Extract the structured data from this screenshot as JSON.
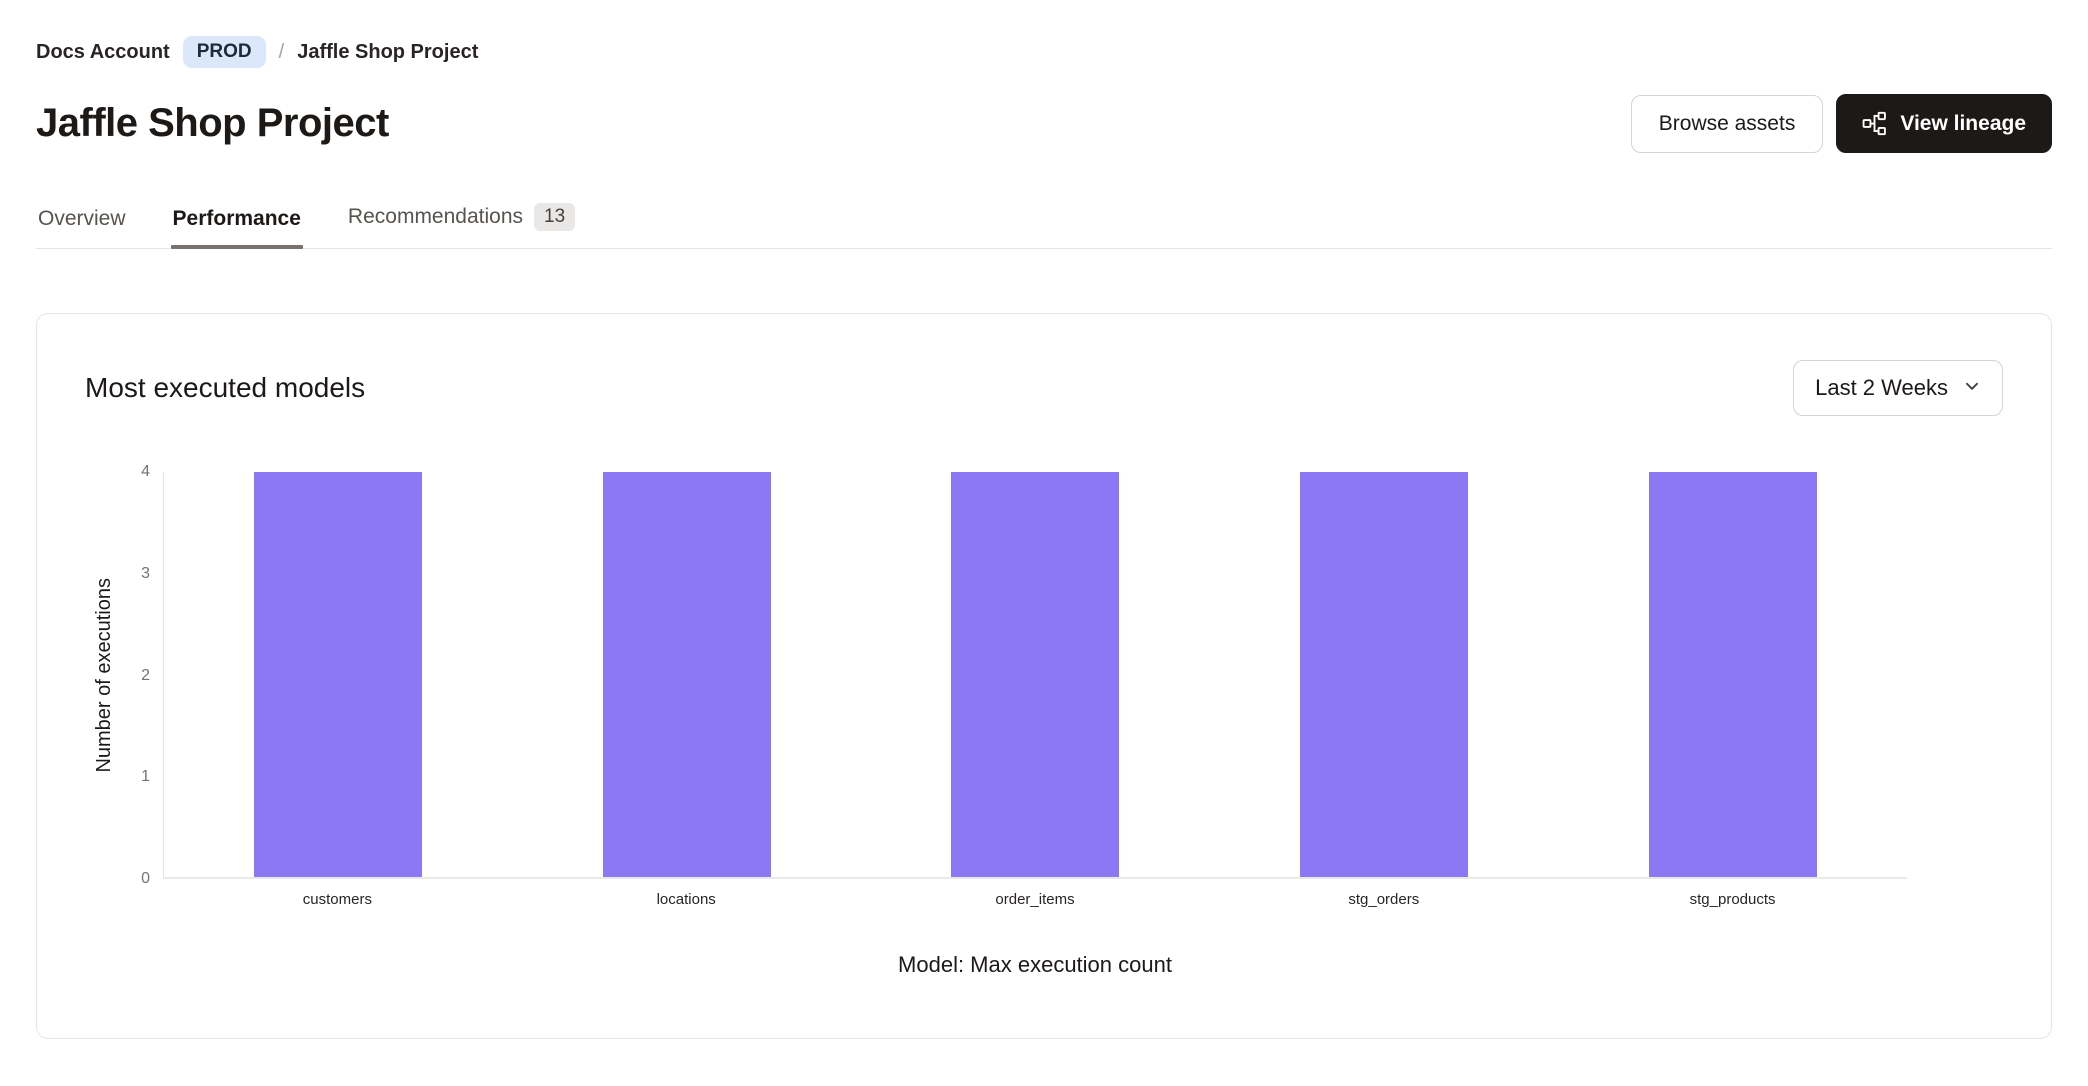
{
  "breadcrumb": {
    "account": "Docs Account",
    "env_badge": "PROD",
    "separator": "/",
    "project": "Jaffle Shop Project"
  },
  "header": {
    "title": "Jaffle Shop Project",
    "browse_assets_label": "Browse assets",
    "view_lineage_label": "View lineage"
  },
  "tabs": {
    "overview": {
      "label": "Overview"
    },
    "performance": {
      "label": "Performance"
    },
    "recommendations": {
      "label": "Recommendations",
      "badge": "13"
    }
  },
  "card": {
    "title": "Most executed models",
    "range_selector_value": "Last 2 Weeks"
  },
  "chart_data": {
    "type": "bar",
    "categories": [
      "customers",
      "locations",
      "order_items",
      "stg_orders",
      "stg_products"
    ],
    "values": [
      4,
      4,
      4,
      4,
      4
    ],
    "title": "Most executed models",
    "xlabel": "Model: Max execution count",
    "ylabel": "Number of executions",
    "ylim": [
      0,
      4
    ],
    "yticks": [
      0,
      1,
      2,
      3,
      4
    ],
    "bar_color": "#8c78f5",
    "grid": false,
    "legend": false,
    "time_range": "Last 2 Weeks"
  },
  "colors": {
    "bar_purple": "#8c78f5",
    "env_badge_bg": "#dbe7fb",
    "primary_button_bg": "#1c1917",
    "border": "#e7e5e4",
    "tick_text": "#78716c",
    "tab_underline": "#78716c"
  }
}
